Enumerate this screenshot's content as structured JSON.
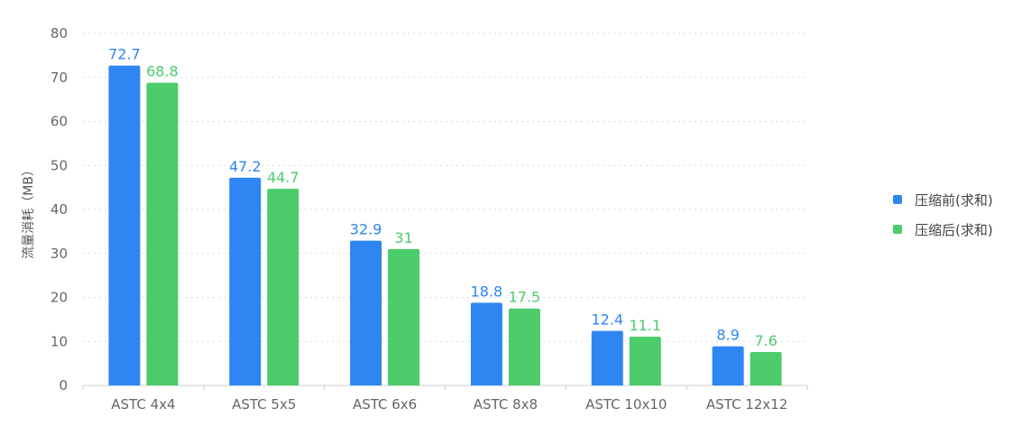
{
  "chart_data": {
    "type": "bar",
    "ylabel": "流量消耗（MB）",
    "ylim": [
      0,
      80
    ],
    "yticks": [
      0,
      10,
      20,
      30,
      40,
      50,
      60,
      70,
      80
    ],
    "grid": "horizontal-dotted",
    "legend_position": "right",
    "categories": [
      "ASTC 4x4",
      "ASTC 5x5",
      "ASTC 6x6",
      "ASTC 8x8",
      "ASTC 10x10",
      "ASTC 12x12"
    ],
    "series": [
      {
        "name": "压缩前(求和)",
        "color": "#2e86f2",
        "values": [
          72.7,
          47.2,
          32.9,
          18.8,
          12.4,
          8.9
        ],
        "labels": [
          "72.7",
          "47.2",
          "32.9",
          "18.8",
          "12.4",
          "8.9"
        ]
      },
      {
        "name": "压缩后(求和)",
        "color": "#4ccc6a",
        "values": [
          68.8,
          44.7,
          31,
          17.5,
          11.1,
          7.6
        ],
        "labels": [
          "68.8",
          "44.7",
          "31",
          "17.5",
          "11.1",
          "7.6"
        ]
      }
    ]
  }
}
